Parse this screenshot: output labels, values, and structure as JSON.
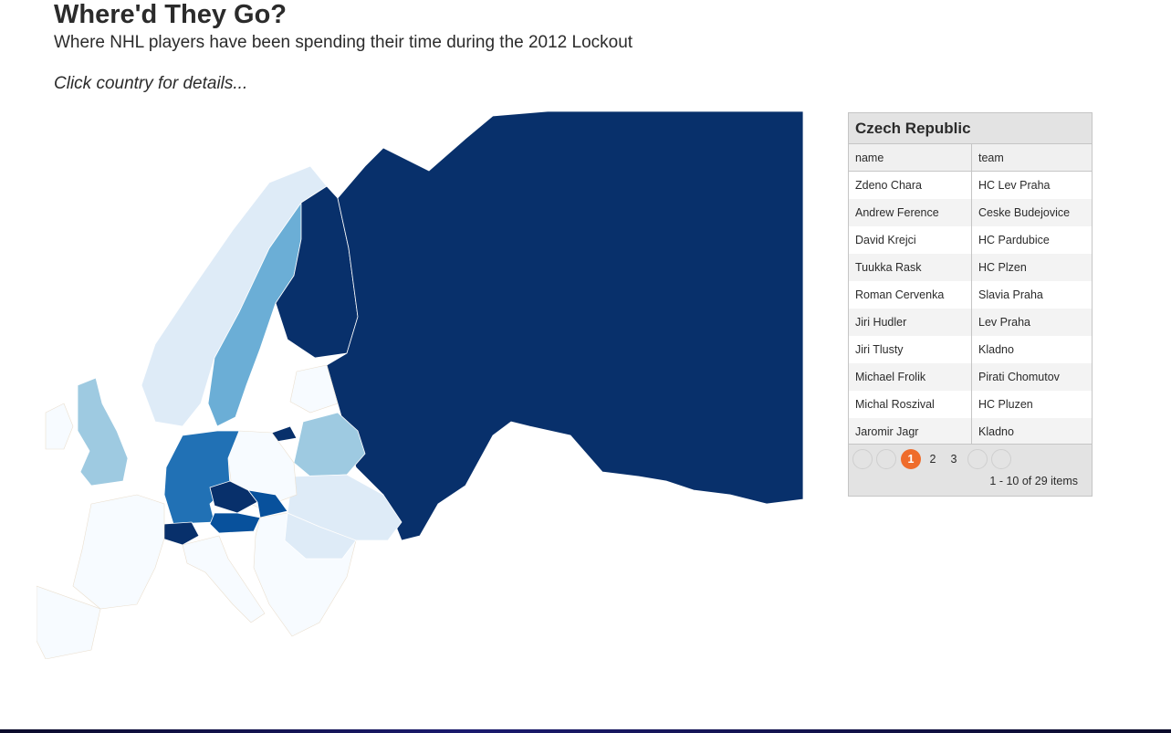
{
  "header": {
    "title": "Where'd They Go?",
    "subtitle": "Where NHL players have been spending their time during the 2012 Lockout",
    "hint": "Click country for details..."
  },
  "colors": {
    "scale": [
      "#f7fbff",
      "#deebf7",
      "#9ecae1",
      "#6baed6",
      "#2171b5",
      "#08519c",
      "#08306b"
    ],
    "pager_current": "#ef6c2b"
  },
  "map": {
    "country_count_level": {
      "russia": 6,
      "finland": 6,
      "sweden": 3,
      "norway": 1,
      "germany": 4,
      "czech-republic": 6,
      "austria": 5,
      "switzerland": 6,
      "slovakia": 5,
      "belarus": 2,
      "ukraine": 1,
      "latvia": 6,
      "united-kingdom": 2,
      "poland": 0,
      "france": 0,
      "italy": 0
    }
  },
  "panel": {
    "country": "Czech Republic",
    "columns": [
      "name",
      "team"
    ],
    "rows": [
      {
        "name": "Zdeno Chara",
        "team": "HC Lev Praha"
      },
      {
        "name": "Andrew Ference",
        "team": "Ceske Budejovice"
      },
      {
        "name": "David Krejci",
        "team": "HC Pardubice"
      },
      {
        "name": "Tuukka Rask",
        "team": "HC Plzen"
      },
      {
        "name": "Roman Cervenka",
        "team": "Slavia Praha"
      },
      {
        "name": "Jiri Hudler",
        "team": "Lev Praha"
      },
      {
        "name": "Jiri Tlusty",
        "team": "Kladno"
      },
      {
        "name": "Michael Frolik",
        "team": "Pirati Chomutov"
      },
      {
        "name": "Michal Roszival",
        "team": "HC Pluzen"
      },
      {
        "name": "Jaromir Jagr",
        "team": "Kladno"
      }
    ],
    "pager": {
      "pages": [
        "1",
        "2",
        "3"
      ],
      "current": "1",
      "info": "1 - 10 of 29 items"
    }
  }
}
